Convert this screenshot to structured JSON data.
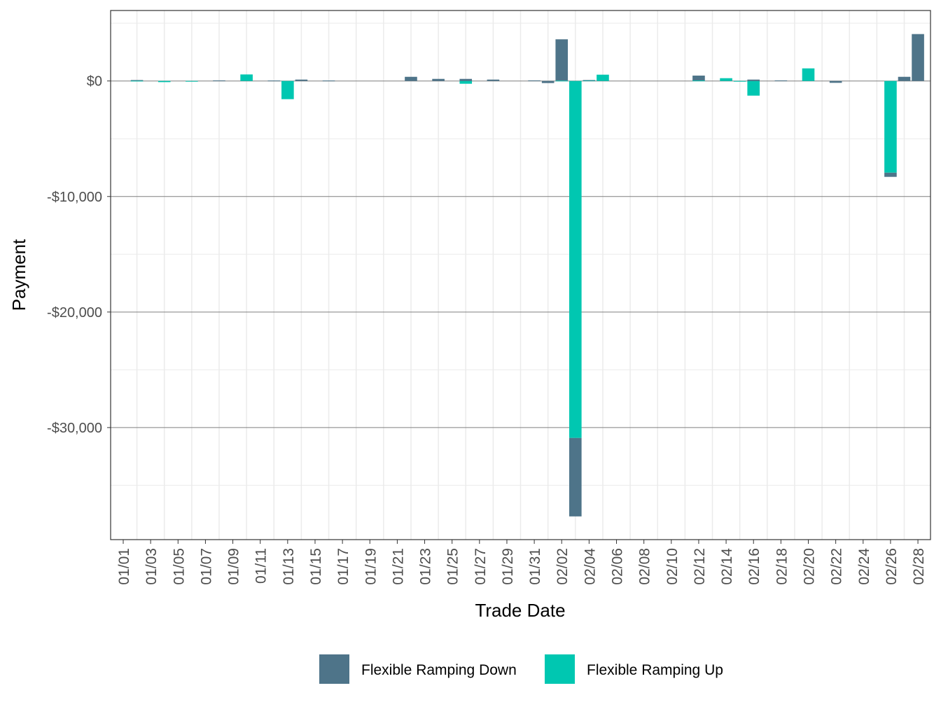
{
  "chart_data": {
    "type": "bar",
    "stacked": true,
    "xlabel": "Trade Date",
    "ylabel": "Payment",
    "ylim": [
      -39700,
      6100
    ],
    "y_ticks": [
      0,
      -10000,
      -20000,
      -30000
    ],
    "y_tick_labels": [
      "$0",
      "-$10,000",
      "-$20,000",
      "-$30,000"
    ],
    "x_tick_labels": [
      "01/01",
      "01/03",
      "01/05",
      "01/07",
      "01/09",
      "01/11",
      "01/13",
      "01/15",
      "01/17",
      "01/19",
      "01/21",
      "01/23",
      "01/25",
      "01/27",
      "01/29",
      "01/31",
      "02/02",
      "02/04",
      "02/06",
      "02/08",
      "02/10",
      "02/12",
      "02/14",
      "02/16",
      "02/18",
      "02/20",
      "02/22",
      "02/24",
      "02/26",
      "02/28"
    ],
    "x_range": [
      "01/01",
      "02/28"
    ],
    "grid": true,
    "legend_position": "bottom",
    "series": [
      {
        "name": "Flexible Ramping Down",
        "color": "#4E7489",
        "points": [
          {
            "date": "01/02",
            "value": 60
          },
          {
            "date": "01/08",
            "value": 50
          },
          {
            "date": "01/12",
            "value": 40
          },
          {
            "date": "01/14",
            "value": 120
          },
          {
            "date": "01/16",
            "value": 40
          },
          {
            "date": "01/22",
            "value": 360
          },
          {
            "date": "01/24",
            "value": 180
          },
          {
            "date": "01/26",
            "value": 180
          },
          {
            "date": "01/28",
            "value": 120
          },
          {
            "date": "01/31",
            "value": 50
          },
          {
            "date": "02/01",
            "value": -180
          },
          {
            "date": "02/02",
            "value": 3575
          },
          {
            "date": "02/03",
            "value": -6790
          },
          {
            "date": "02/04",
            "value": 40
          },
          {
            "date": "02/12",
            "value": 425
          },
          {
            "date": "02/16",
            "value": 120
          },
          {
            "date": "02/18",
            "value": 50
          },
          {
            "date": "02/22",
            "value": -160
          },
          {
            "date": "02/26",
            "value": -360
          },
          {
            "date": "02/27",
            "value": 360
          },
          {
            "date": "02/28",
            "value": 4060
          }
        ]
      },
      {
        "name": "Flexible Ramping Up",
        "color": "#00C7B1",
        "points": [
          {
            "date": "01/02",
            "value": 20
          },
          {
            "date": "01/04",
            "value": -100
          },
          {
            "date": "01/06",
            "value": -30
          },
          {
            "date": "01/10",
            "value": 565
          },
          {
            "date": "01/13",
            "value": -1575
          },
          {
            "date": "01/26",
            "value": -240
          },
          {
            "date": "02/02",
            "value": 30
          },
          {
            "date": "02/03",
            "value": -30900
          },
          {
            "date": "02/04",
            "value": 40
          },
          {
            "date": "02/05",
            "value": 545
          },
          {
            "date": "02/12",
            "value": 40
          },
          {
            "date": "02/14",
            "value": 240
          },
          {
            "date": "02/15",
            "value": -40
          },
          {
            "date": "02/16",
            "value": -1270
          },
          {
            "date": "02/20",
            "value": 1090
          },
          {
            "date": "02/26",
            "value": -7940
          }
        ]
      }
    ]
  }
}
